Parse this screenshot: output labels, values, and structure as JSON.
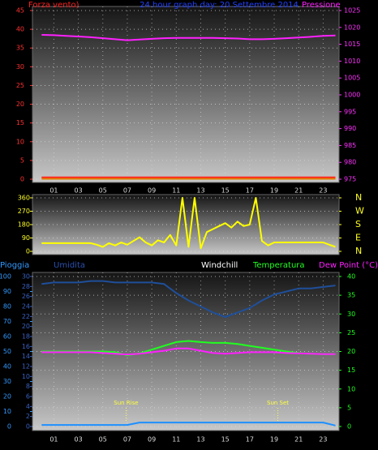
{
  "chart_data": [
    {
      "type": "line",
      "labels": [
        {
          "text": "Forza vento)",
          "color": "#ff2020"
        },
        {
          "text": "24 hour graph day:  20 Settembre 2014",
          "color": "#2040ff"
        },
        {
          "text": "Pressione",
          "color": "#ff20ff"
        }
      ],
      "xlim": [
        -0.75,
        24.3
      ],
      "xticks": [
        {
          "value": 1,
          "label": "01"
        },
        {
          "value": 3,
          "label": "03"
        },
        {
          "value": 5,
          "label": "05"
        },
        {
          "value": 7,
          "label": "07"
        },
        {
          "value": 9,
          "label": "09"
        },
        {
          "value": 11,
          "label": "11"
        },
        {
          "value": 13,
          "label": "13"
        },
        {
          "value": 15,
          "label": "15"
        },
        {
          "value": 17,
          "label": "17"
        },
        {
          "value": 19,
          "label": "19"
        },
        {
          "value": 21,
          "label": "21"
        },
        {
          "value": 23,
          "label": "23"
        }
      ],
      "ylim": [
        0,
        45
      ],
      "yticks": [
        0,
        5,
        10,
        15,
        20,
        25,
        30,
        35,
        40,
        45
      ],
      "ycolor": "#ff3030",
      "y2lim": [
        975,
        1025
      ],
      "y2ticks": [
        975,
        980,
        985,
        990,
        995,
        1000,
        1005,
        1010,
        1015,
        1020,
        1025
      ],
      "y2color": "#ff30ff",
      "grid": true,
      "x": [
        0,
        1,
        2,
        3,
        4,
        5,
        6,
        7,
        8,
        9,
        10,
        11,
        12,
        13,
        14,
        15,
        16,
        17,
        18,
        19,
        20,
        21,
        22,
        23,
        24
      ],
      "series": [
        {
          "color": "#ff20ff",
          "axis": "y2",
          "values": [
            1017.8,
            1017.7,
            1017.5,
            1017.3,
            1017.1,
            1016.8,
            1016.5,
            1016.2,
            1016.4,
            1016.6,
            1016.8,
            1016.9,
            1016.9,
            1016.9,
            1016.9,
            1016.8,
            1016.7,
            1016.5,
            1016.5,
            1016.6,
            1016.8,
            1017,
            1017.2,
            1017.5,
            1017.6
          ]
        },
        {
          "color": "#ff2020",
          "axis": "y",
          "values": [
            0.5,
            0.5,
            0.5,
            0.5,
            0.5,
            0.5,
            0.5,
            0.5,
            0.5,
            0.5,
            0.5,
            0.5,
            0.5,
            0.5,
            0.5,
            0.5,
            0.5,
            0.5,
            0.5,
            0.5,
            0.5,
            0.5,
            0.5,
            0.5,
            0.5
          ]
        },
        {
          "color": "#e08000",
          "axis": "y",
          "values": [
            0.1,
            0.1,
            0.1,
            0.1,
            0.1,
            0.1,
            0.1,
            0.1,
            0.1,
            0.1,
            0.1,
            0.1,
            0.1,
            0.1,
            0.1,
            0.1,
            0.1,
            0.1,
            0.1,
            0.1,
            0.1,
            0.1,
            0.1,
            0.1,
            0.1
          ]
        }
      ]
    },
    {
      "type": "line",
      "labels": [],
      "xlim": [
        -0.75,
        24.3
      ],
      "xticks": [],
      "ylim": [
        0,
        360
      ],
      "yticks": [
        0,
        90,
        180,
        270,
        360
      ],
      "ycolor": "#ffff20",
      "y2lim": [
        0,
        360
      ],
      "y2ticks": [
        {
          "value": 360,
          "label": "N"
        },
        {
          "value": 270,
          "label": "W"
        },
        {
          "value": 180,
          "label": "S"
        },
        {
          "value": 90,
          "label": "E"
        },
        {
          "value": 0,
          "label": "N"
        }
      ],
      "y2color": "#ffff20",
      "grid": true,
      "x": [
        0,
        0.5,
        1,
        1.5,
        2,
        2.5,
        3,
        3.5,
        4,
        4.5,
        5,
        5.5,
        6,
        6.5,
        7,
        7.5,
        8,
        8.5,
        9,
        9.5,
        10,
        10.5,
        11,
        11.5,
        12,
        12.5,
        13,
        13.5,
        14,
        14.5,
        15,
        15.5,
        16,
        16.5,
        17,
        17.5,
        18,
        18.5,
        19,
        19.5,
        20,
        20.5,
        21,
        21.5,
        22,
        22.5,
        23,
        23.5,
        24
      ],
      "series": [
        {
          "color": "#ffff00",
          "axis": "y",
          "values": [
            55,
            55,
            55,
            55,
            55,
            55,
            55,
            55,
            55,
            45,
            30,
            55,
            40,
            60,
            45,
            70,
            95,
            60,
            40,
            75,
            60,
            110,
            40,
            360,
            30,
            360,
            20,
            130,
            150,
            170,
            190,
            160,
            200,
            170,
            180,
            360,
            70,
            40,
            60,
            60,
            60,
            60,
            60,
            60,
            60,
            60,
            60,
            45,
            30
          ]
        }
      ]
    },
    {
      "type": "line",
      "labels": [
        {
          "text": "Pioggia",
          "color": "#3399ff"
        },
        {
          "text": "Umidita",
          "color": "#2a50b0"
        },
        {
          "text": "Windchill",
          "color": "#ffffff"
        },
        {
          "text": "Temperatura",
          "color": "#20ff20"
        },
        {
          "text": "Dew Point (°C)",
          "color": "#ff20ff"
        }
      ],
      "xlim": [
        -0.75,
        24.3
      ],
      "xticks": [
        {
          "value": 1,
          "label": "01"
        },
        {
          "value": 3,
          "label": "03"
        },
        {
          "value": 5,
          "label": "05"
        },
        {
          "value": 7,
          "label": "07"
        },
        {
          "value": 9,
          "label": "09"
        },
        {
          "value": 11,
          "label": "11"
        },
        {
          "value": 13,
          "label": "13"
        },
        {
          "value": 15,
          "label": "15"
        },
        {
          "value": 17,
          "label": "17"
        },
        {
          "value": 19,
          "label": "19"
        },
        {
          "value": 21,
          "label": "21"
        },
        {
          "value": 23,
          "label": "23"
        }
      ],
      "ylim": [
        0,
        100
      ],
      "yticks": [
        0,
        10,
        20,
        30,
        40,
        50,
        60,
        70,
        80,
        90,
        100
      ],
      "ycolor": "#3399ff",
      "y2lim": [
        0,
        30
      ],
      "y2ticks": [
        0,
        2,
        4,
        6,
        8,
        10,
        12,
        14,
        16,
        18,
        20,
        22,
        24,
        26,
        28,
        30
      ],
      "y2color": "#3a60c0",
      "y3lim": [
        0,
        40
      ],
      "y3ticks": [
        0,
        5,
        10,
        15,
        20,
        25,
        30,
        35,
        40
      ],
      "y3color": "#20ff20",
      "grid": true,
      "annotations": [
        {
          "text": "Sun Rise",
          "x": 6.9
        },
        {
          "text": "Sun Set",
          "x": 19.3
        }
      ],
      "x": [
        0,
        1,
        2,
        3,
        4,
        5,
        6,
        7,
        8,
        9,
        10,
        11,
        12,
        13,
        14,
        15,
        16,
        17,
        18,
        19,
        20,
        21,
        22,
        23,
        24
      ],
      "series": [
        {
          "color": "#1f4f9a",
          "axis": "y",
          "values": [
            95,
            96,
            96,
            96,
            97,
            97,
            96,
            96,
            96,
            96,
            95,
            89,
            84,
            80,
            76,
            73,
            76,
            79,
            84,
            88,
            90,
            92,
            92,
            93,
            94
          ]
        },
        {
          "color": "#20ff20",
          "axis": "y3",
          "values": [
            20,
            20,
            20,
            20,
            20,
            20,
            19.8,
            19,
            19.5,
            20.5,
            21.5,
            22.5,
            22.8,
            22.5,
            22.3,
            22.3,
            22,
            21.5,
            21,
            20.5,
            20,
            19.6,
            19.4,
            19.3,
            19.3
          ]
        },
        {
          "color": "#ff20ff",
          "axis": "y3",
          "values": [
            19.8,
            19.8,
            19.8,
            19.8,
            19.8,
            19.6,
            19.4,
            19.2,
            19.4,
            19.8,
            20.2,
            20.8,
            20.8,
            20.2,
            19.6,
            19.4,
            19.6,
            19.8,
            19.8,
            19.8,
            19.6,
            19.5,
            19.4,
            19.3,
            19.3
          ]
        },
        {
          "color": "#1e90ff",
          "axis": "y2",
          "values": [
            0.3,
            0.3,
            0.3,
            0.3,
            0.3,
            0.3,
            0.3,
            0.3,
            0.8,
            0.8,
            0.8,
            0.8,
            0.8,
            0.8,
            0.8,
            0.8,
            0.8,
            0.8,
            0.8,
            0.8,
            0.8,
            0.8,
            0.8,
            0.8,
            0.2
          ]
        }
      ]
    }
  ]
}
